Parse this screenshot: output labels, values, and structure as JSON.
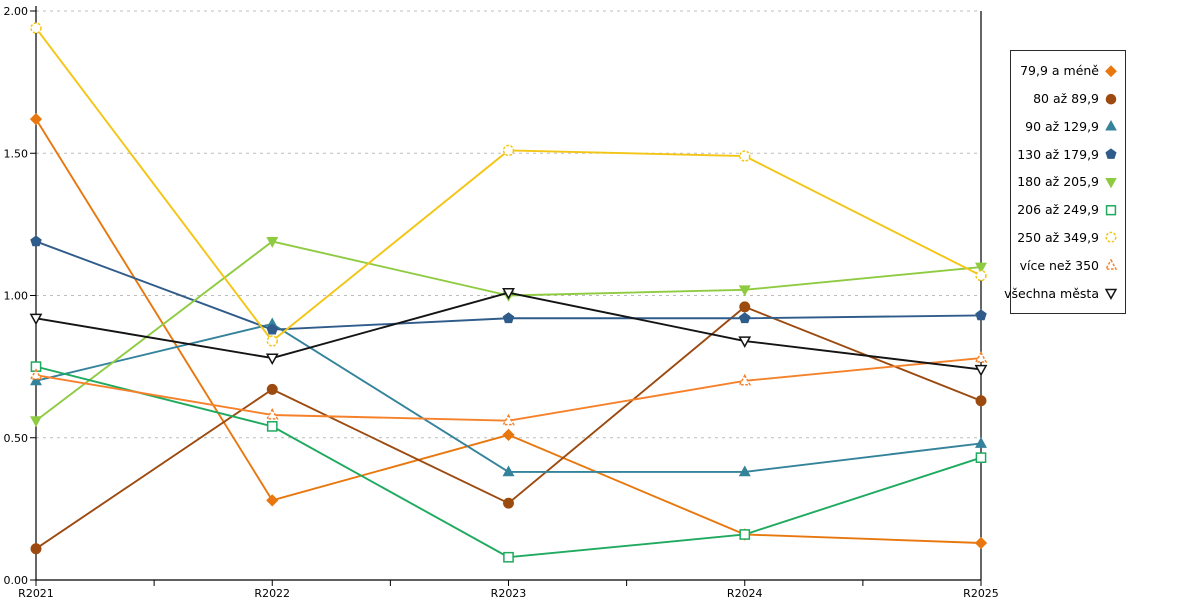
{
  "chart_data": {
    "type": "line",
    "title": "",
    "xlabel": "",
    "ylabel": "",
    "x_categories": [
      "R2021",
      "R2022",
      "R2023",
      "R2024",
      "R2025"
    ],
    "y_tick_labels": [
      "0.00",
      "0.50",
      "1.00",
      "1.50",
      "2.00"
    ],
    "y_tick_values": [
      0,
      0.5,
      1,
      1.5,
      2
    ],
    "ylim": [
      0,
      2
    ],
    "grid": "horizontal-dashed",
    "grid_color": "#bdbdbd",
    "axis_color": "#000000",
    "legend_position": "right",
    "series": [
      {
        "name": "79,9 a méně",
        "color": "#e8770e",
        "marker": "diamond",
        "filled": true,
        "dashed_marker": false,
        "values": [
          1.62,
          0.28,
          0.51,
          0.16,
          0.13
        ]
      },
      {
        "name": "80 až 89,9",
        "color": "#9c4a0f",
        "marker": "circle",
        "filled": true,
        "dashed_marker": false,
        "values": [
          0.11,
          0.67,
          0.27,
          0.96,
          0.63
        ]
      },
      {
        "name": "90 až 129,9",
        "color": "#34839b",
        "marker": "triangle-up",
        "filled": true,
        "dashed_marker": false,
        "values": [
          0.7,
          0.9,
          0.38,
          0.38,
          0.48
        ]
      },
      {
        "name": "130 až 179,9",
        "color": "#2f5c8a",
        "marker": "pentagon",
        "filled": true,
        "dashed_marker": false,
        "values": [
          1.19,
          0.88,
          0.92,
          0.92,
          0.93
        ]
      },
      {
        "name": "180 až 205,9",
        "color": "#8fcb41",
        "marker": "triangle-down",
        "filled": true,
        "dashed_marker": false,
        "values": [
          0.56,
          1.19,
          1.0,
          1.02,
          1.1
        ]
      },
      {
        "name": "206 až 249,9",
        "color": "#1faa5f",
        "marker": "square",
        "filled": false,
        "dashed_marker": false,
        "values": [
          0.75,
          0.54,
          0.08,
          0.16,
          0.43
        ]
      },
      {
        "name": "250 až 349,9",
        "color": "#f3c514",
        "marker": "circle",
        "filled": false,
        "dashed_marker": true,
        "values": [
          1.94,
          0.84,
          1.51,
          1.49,
          1.07
        ]
      },
      {
        "name": "více než 350",
        "color": "#f5812b",
        "marker": "triangle-up",
        "filled": false,
        "dashed_marker": true,
        "values": [
          0.72,
          0.58,
          0.56,
          0.7,
          0.78
        ]
      },
      {
        "name": "všechna města",
        "color": "#141414",
        "marker": "triangle-down",
        "filled": false,
        "dashed_marker": false,
        "values": [
          0.92,
          0.78,
          1.01,
          0.84,
          0.74
        ]
      }
    ]
  }
}
